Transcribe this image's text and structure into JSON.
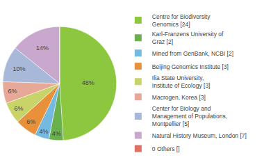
{
  "chart_data": {
    "type": "pie",
    "categories": [
      "Centre for Biodiversity\nGenomics [24]",
      "Karl-Franzens University of\nGraz [2]",
      "Mined from GenBank, NCBI [2]",
      "Beijing Genomics Institute [3]",
      "Ilia State University,\nInstitute of Ecology [3]",
      "Macrogen, Korea [3]",
      "Center for Biology and\nManagement of Populations,\nMontpellier [5]",
      "Natural History Museum, London [7]",
      "0 Others []"
    ],
    "values": [
      48,
      4,
      4,
      6,
      6,
      6,
      10,
      14,
      0.002
    ],
    "value_labels": [
      "48%",
      "4%",
      "4%",
      "6%",
      "6%",
      "6%",
      "10%",
      "14%",
      null
    ],
    "colors": [
      "#8dc63f",
      "#6ab04c",
      "#74b9e0",
      "#e8913a",
      "#c8d46a",
      "#e8a898",
      "#a8b8d8",
      "#c8a8cc",
      "#e07060"
    ],
    "data_labels": true,
    "legend": "right"
  }
}
